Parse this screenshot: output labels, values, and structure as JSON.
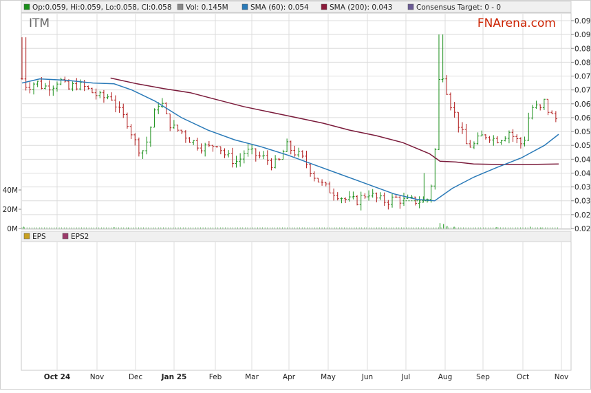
{
  "legend_top": [
    {
      "label": "Op:0.059, Hi:0.059, Lo:0.058, Cl:0.058",
      "color": "#1a8f1a"
    },
    {
      "label": "Vol: 0.145M",
      "color": "#888888"
    },
    {
      "label": "SMA (60): 0.054",
      "color": "#2a7ab8"
    },
    {
      "label": "SMA (200): 0.043",
      "color": "#8b1a3a"
    },
    {
      "label": "Consensus Target: 0 - 0",
      "color": "#6b5b95"
    }
  ],
  "legend_bottom": [
    {
      "label": "EPS",
      "color": "#c8a020"
    },
    {
      "label": "EPS2",
      "color": "#9b3b6b"
    }
  ],
  "ticker": "ITM",
  "brand": "FNArena.com",
  "colors": {
    "up": "#1a8f1a",
    "down": "#b01818",
    "sma60": "#2a7ab8",
    "sma200": "#7a1a3a",
    "brand": "#cc2200",
    "grid": "#dcdcdc",
    "volume": "#3aa63a"
  },
  "chart_data": {
    "type": "line",
    "price_axis": {
      "min": 0.02,
      "max": 0.095,
      "ticks": [
        "0.020",
        "0.025",
        "0.030",
        "0.035",
        "0.040",
        "0.045",
        "0.050",
        "0.055",
        "0.060",
        "0.065",
        "0.070",
        "0.075",
        "0.080",
        "0.085",
        "0.090",
        "0.095"
      ]
    },
    "volume_axis": {
      "ticks": [
        "0M",
        "20M",
        "40M"
      ]
    },
    "x_axis": {
      "labels": [
        "Oct 24",
        "Nov",
        "Dec",
        "Jan 25",
        "Feb",
        "Mar",
        "Apr",
        "May",
        "Jun",
        "Jul",
        "Aug",
        "Sep",
        "Oct",
        "Nov"
      ],
      "bold": [
        "Oct 24",
        "Jan 25"
      ]
    },
    "price_path": [
      [
        0,
        0.074
      ],
      [
        0.3,
        0.071
      ],
      [
        0.8,
        0.073
      ],
      [
        1.2,
        0.071
      ],
      [
        1.8,
        0.072
      ],
      [
        2.1,
        0.074
      ],
      [
        2.6,
        0.07
      ],
      [
        3.0,
        0.072
      ],
      [
        3.5,
        0.071
      ],
      [
        4.0,
        0.069
      ],
      [
        4.5,
        0.067
      ],
      [
        5.0,
        0.068
      ],
      [
        5.5,
        0.062
      ],
      [
        6.0,
        0.058
      ],
      [
        6.3,
        0.052
      ],
      [
        6.6,
        0.049
      ],
      [
        6.9,
        0.048
      ],
      [
        7.4,
        0.06
      ],
      [
        7.8,
        0.067
      ],
      [
        8.2,
        0.059
      ],
      [
        8.6,
        0.056
      ],
      [
        9.0,
        0.055
      ],
      [
        9.5,
        0.052
      ],
      [
        10.0,
        0.05
      ],
      [
        10.5,
        0.049
      ],
      [
        11.0,
        0.051
      ],
      [
        11.4,
        0.047
      ],
      [
        11.8,
        0.045
      ],
      [
        12.2,
        0.044
      ],
      [
        12.6,
        0.048
      ],
      [
        13.0,
        0.047
      ],
      [
        13.4,
        0.046
      ],
      [
        13.8,
        0.045
      ],
      [
        14.2,
        0.043
      ],
      [
        14.5,
        0.044
      ],
      [
        14.9,
        0.05
      ],
      [
        15.3,
        0.048
      ],
      [
        15.7,
        0.046
      ],
      [
        16.1,
        0.043
      ],
      [
        16.5,
        0.039
      ],
      [
        16.9,
        0.036
      ],
      [
        17.3,
        0.034
      ],
      [
        17.7,
        0.033
      ],
      [
        18.1,
        0.031
      ],
      [
        18.5,
        0.03
      ],
      [
        18.9,
        0.03
      ],
      [
        19.3,
        0.032
      ],
      [
        19.6,
        0.033
      ],
      [
        19.9,
        0.031
      ],
      [
        20.3,
        0.03
      ],
      [
        20.7,
        0.03
      ],
      [
        21.1,
        0.031
      ],
      [
        21.5,
        0.03
      ],
      [
        21.9,
        0.03
      ],
      [
        22.3,
        0.03
      ],
      [
        22.7,
        0.03
      ],
      [
        23.0,
        0.031
      ],
      [
        23.3,
        0.046
      ],
      [
        23.6,
        0.08
      ],
      [
        23.9,
        0.072
      ],
      [
        24.2,
        0.065
      ],
      [
        24.5,
        0.06
      ],
      [
        24.8,
        0.055
      ],
      [
        25.1,
        0.05
      ],
      [
        25.5,
        0.05
      ],
      [
        25.9,
        0.053
      ],
      [
        26.3,
        0.054
      ],
      [
        26.7,
        0.052
      ],
      [
        27.1,
        0.053
      ],
      [
        27.5,
        0.055
      ],
      [
        27.9,
        0.052
      ],
      [
        28.3,
        0.05
      ],
      [
        28.6,
        0.06
      ],
      [
        28.9,
        0.065
      ],
      [
        29.2,
        0.062
      ],
      [
        29.5,
        0.066
      ],
      [
        29.8,
        0.061
      ],
      [
        30.1,
        0.06
      ],
      [
        30.3,
        0.058
      ]
    ],
    "sma60": [
      [
        0,
        0.0725
      ],
      [
        1,
        0.074
      ],
      [
        2.5,
        0.0735
      ],
      [
        4,
        0.0725
      ],
      [
        5.2,
        0.0722
      ],
      [
        6.2,
        0.07
      ],
      [
        7.5,
        0.066
      ],
      [
        9,
        0.06
      ],
      [
        10.5,
        0.0555
      ],
      [
        12,
        0.052
      ],
      [
        13.5,
        0.0495
      ],
      [
        15,
        0.0465
      ],
      [
        16.5,
        0.043
      ],
      [
        18,
        0.0395
      ],
      [
        19.5,
        0.036
      ],
      [
        21,
        0.0325
      ],
      [
        22.3,
        0.0305
      ],
      [
        23.3,
        0.03
      ],
      [
        24.3,
        0.0345
      ],
      [
        25.5,
        0.0385
      ],
      [
        26.8,
        0.042
      ],
      [
        28.2,
        0.0455
      ],
      [
        29.5,
        0.05
      ],
      [
        30.3,
        0.054
      ]
    ],
    "sma200": [
      [
        5,
        0.0743
      ],
      [
        6.5,
        0.0722
      ],
      [
        8,
        0.0705
      ],
      [
        9.5,
        0.069
      ],
      [
        11,
        0.0665
      ],
      [
        12.5,
        0.064
      ],
      [
        14,
        0.062
      ],
      [
        15.5,
        0.06
      ],
      [
        17,
        0.058
      ],
      [
        18.5,
        0.0555
      ],
      [
        20,
        0.0535
      ],
      [
        21.5,
        0.051
      ],
      [
        23,
        0.047
      ],
      [
        23.6,
        0.0443
      ],
      [
        24.5,
        0.044
      ],
      [
        25.5,
        0.0433
      ],
      [
        27,
        0.0431
      ],
      [
        28.5,
        0.0431
      ],
      [
        30.3,
        0.0433
      ]
    ],
    "volume_events": [
      [
        0.1,
        2
      ],
      [
        5.2,
        1.5
      ],
      [
        6.0,
        1
      ],
      [
        23.6,
        6
      ],
      [
        23.8,
        5
      ],
      [
        24.0,
        3
      ],
      [
        24.4,
        2
      ],
      [
        26.8,
        1.5
      ],
      [
        28.7,
        2
      ],
      [
        29.3,
        1
      ]
    ]
  }
}
